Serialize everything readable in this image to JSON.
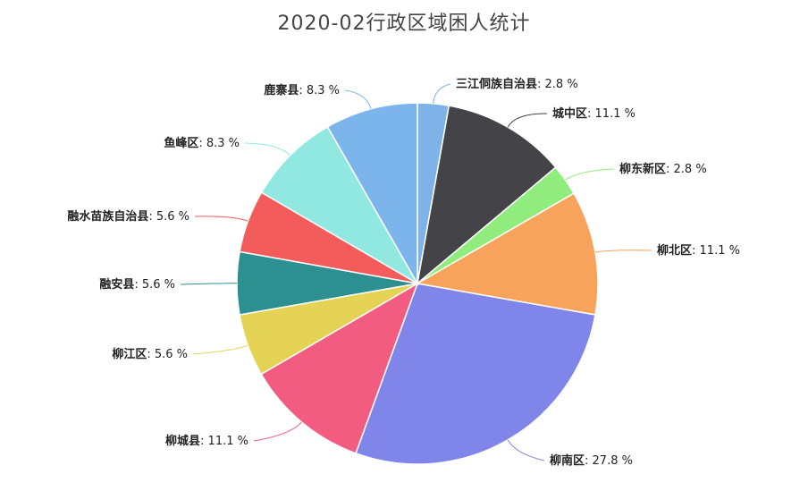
{
  "chart_data": {
    "type": "pie",
    "title": "2020-02行政区域困人统计",
    "start_angle_deg": 90,
    "direction": "clockwise",
    "slices": [
      {
        "name": "三江侗族自治县",
        "value": 2.8,
        "color": "#7eb3e8",
        "label_pct": "2.8 %"
      },
      {
        "name": "城中区",
        "value": 11.1,
        "color": "#434348",
        "label_pct": "11.1 %"
      },
      {
        "name": "柳东新区",
        "value": 2.8,
        "color": "#90ed7d",
        "label_pct": "2.8 %"
      },
      {
        "name": "柳北区",
        "value": 11.1,
        "color": "#f7a35c",
        "label_pct": "11.1 %"
      },
      {
        "name": "柳南区",
        "value": 27.8,
        "color": "#8085e9",
        "label_pct": "27.8 %"
      },
      {
        "name": "柳城县",
        "value": 11.1,
        "color": "#f15c80",
        "label_pct": "11.1 %"
      },
      {
        "name": "柳江区",
        "value": 5.6,
        "color": "#e4d354",
        "label_pct": "5.6 %"
      },
      {
        "name": "融安县",
        "value": 5.6,
        "color": "#2b908f",
        "label_pct": "5.6 %"
      },
      {
        "name": "融水苗族自治县",
        "value": 5.6,
        "color": "#f45b5b",
        "label_pct": "5.6 %"
      },
      {
        "name": "鱼峰区",
        "value": 8.3,
        "color": "#91e8e1",
        "label_pct": "8.3 %"
      },
      {
        "name": "鹿寨县",
        "value": 8.3,
        "color": "#7cb5ec",
        "label_pct": "8.3 %"
      }
    ]
  }
}
